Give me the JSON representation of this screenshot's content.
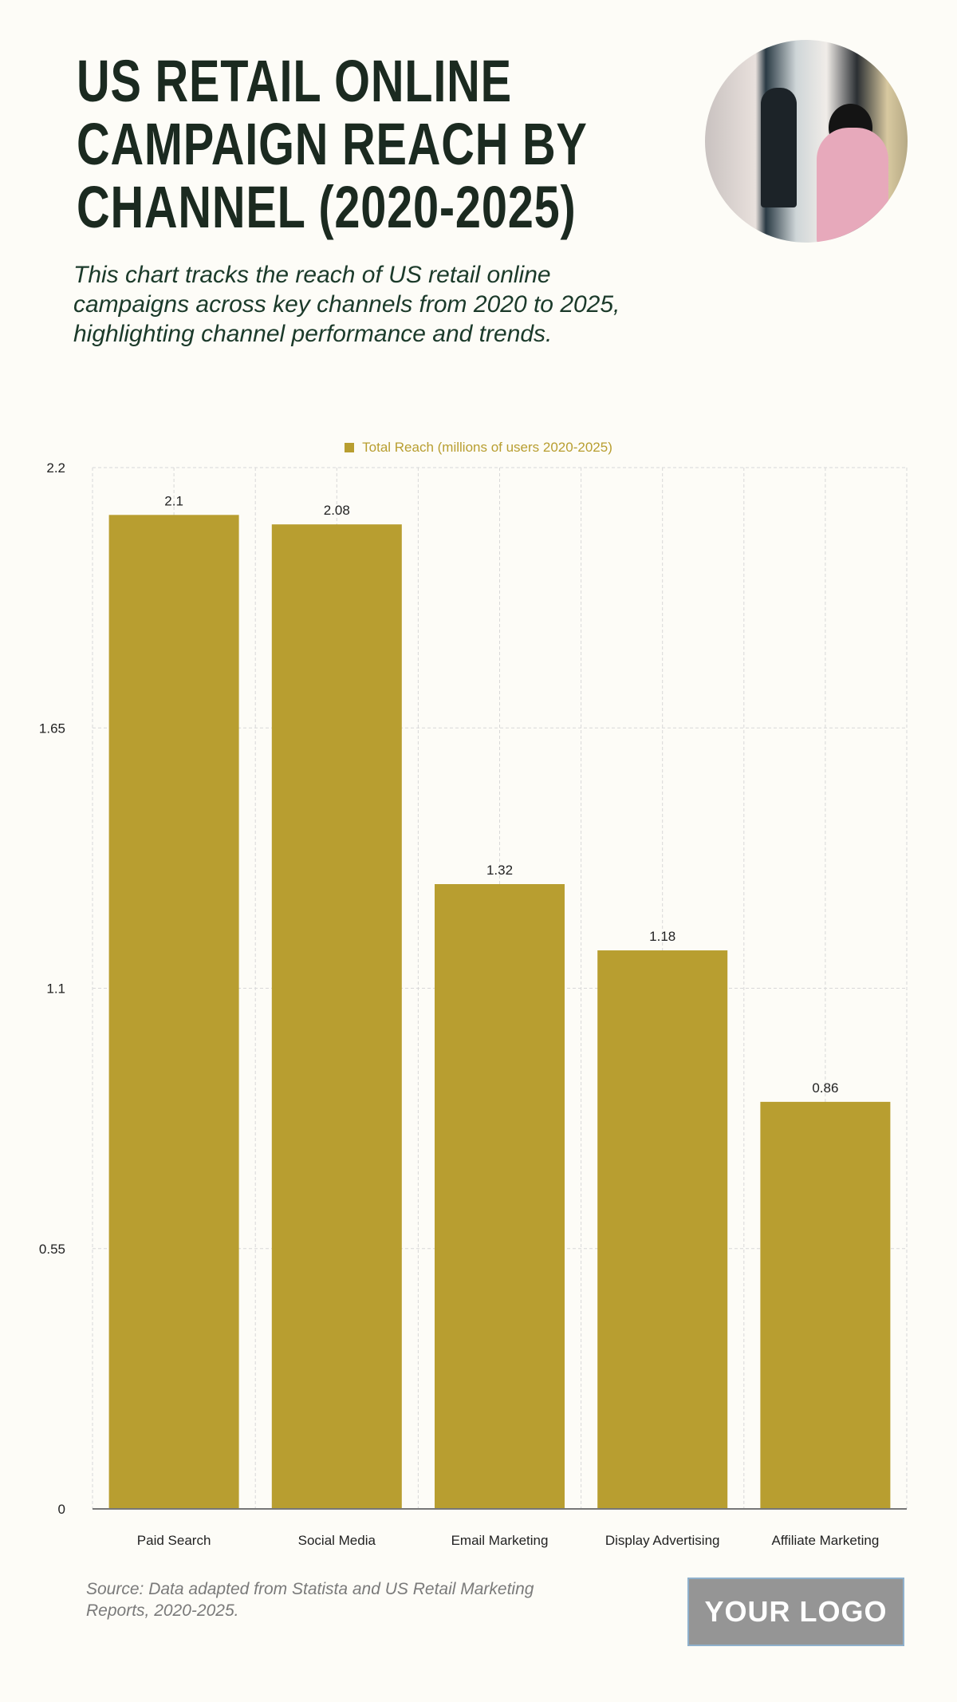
{
  "header": {
    "title_lines": [
      "US RETAIL ONLINE",
      "CAMPAIGN REACH BY",
      "CHANNEL (2020-2025)"
    ],
    "subtitle_lines": [
      "This chart tracks the reach of US retail online",
      "campaigns across key channels from 2020 to 2025,",
      "highlighting channel performance and trends."
    ]
  },
  "chart_data": {
    "type": "bar",
    "categories": [
      "Paid Search",
      "Social Media",
      "Email Marketing",
      "Display Advertising",
      "Affiliate Marketing"
    ],
    "series": [
      {
        "name": "Total Reach (millions of users 2020-2025)",
        "values": [
          2.1,
          2.08,
          1.32,
          1.18,
          0.86
        ]
      }
    ],
    "data_labels": [
      "2.1",
      "2.08",
      "1.32",
      "1.18",
      "0.86"
    ],
    "yticks": [
      "0",
      "0.55",
      "1.1",
      "1.65",
      "2.2"
    ],
    "ylim": [
      0,
      2.2
    ],
    "grid": true,
    "legend": "top-center",
    "bar_color": "#b89e30"
  },
  "footer": {
    "source_lines": [
      "Source: Data adapted from Statista and US Retail Marketing",
      "Reports, 2020-2025."
    ],
    "logo_text": "YOUR LOGO"
  }
}
